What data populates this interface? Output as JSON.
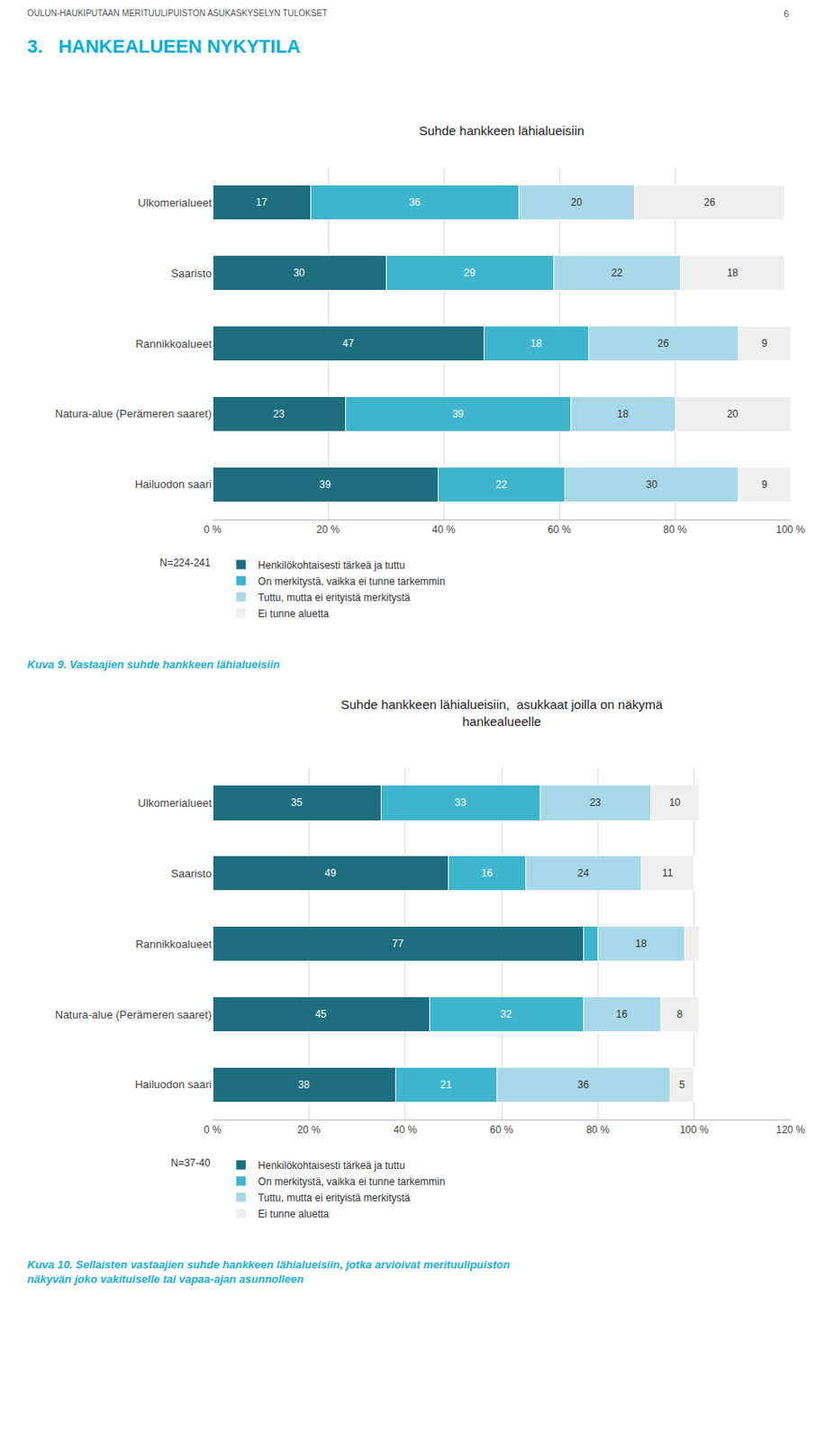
{
  "title": "3.   HANKEALUEEN NYKYTILA",
  "annotations": [
    "OULUN-HAUKIPUTAAN MERITUULIPUISTON ASUKASKYSELYN TULOKSET",
    "6"
  ],
  "chart_data": [
    {
      "type": "bar",
      "orientation": "horizontal",
      "stacked": true,
      "title": "Suhde hankkeen lähialueisiin",
      "categories": [
        "Ulkomerialueet",
        "Saaristo",
        "Rannikkoalueet",
        "Natura-alue (Perämeren saaret)",
        "Hailuodon saari"
      ],
      "series": [
        {
          "name": "Henkilökohtaisesti tärkeä ja tuttu",
          "color": "#1d6e7e",
          "values": [
            17,
            30,
            47,
            23,
            39
          ]
        },
        {
          "name": "On merkitystä, vaikka ei tunne tarkemmin",
          "color": "#3eb5cc",
          "values": [
            36,
            29,
            18,
            39,
            22
          ]
        },
        {
          "name": "Tuttu, mutta ei erityistä merkitystä",
          "color": "#a8d8e8",
          "values": [
            20,
            22,
            26,
            18,
            30
          ]
        },
        {
          "name": "Ei tunne aluetta",
          "color": "#efefef",
          "values": [
            26,
            18,
            9,
            20,
            9
          ]
        }
      ],
      "xlim": [
        0,
        100
      ],
      "xticks": [
        {
          "value": 0,
          "label": "0 %"
        },
        {
          "value": 20,
          "label": "20 %"
        },
        {
          "value": 40,
          "label": "40 %"
        },
        {
          "value": 60,
          "label": "60 %"
        },
        {
          "value": 80,
          "label": "80 %"
        },
        {
          "value": 100,
          "label": "100 %"
        }
      ],
      "grid": true,
      "legend": "bottom",
      "data_labels": true,
      "annotations": [
        "N=224-241",
        "Kuva 9. Vastaajien suhde hankkeen lähialueisiin"
      ]
    },
    {
      "type": "bar",
      "orientation": "horizontal",
      "stacked": true,
      "title": "Suhde hankkeen lähialueisiin,  asukkaat joilla on näkymä\nhankealueelle",
      "categories": [
        "Ulkomerialueet",
        "Saaristo",
        "Rannikkoalueet",
        "Natura-alue (Perämeren saaret)",
        "Hailuodon saari"
      ],
      "series": [
        {
          "name": "Henkilökohtaisesti tärkeä ja tuttu",
          "color": "#1d6e7e",
          "values": [
            35,
            49,
            77,
            45,
            38
          ]
        },
        {
          "name": "On merkitystä, vaikka ei tunne tarkemmin",
          "color": "#3eb5cc",
          "values": [
            33,
            16,
            3,
            32,
            21
          ],
          "value_labels": [
            "33",
            "16",
            null,
            "32",
            "21"
          ]
        },
        {
          "name": "Tuttu, mutta ei erityistä merkitystä",
          "color": "#a8d8e8",
          "values": [
            23,
            24,
            18,
            16,
            36
          ]
        },
        {
          "name": "Ei tunne aluetta",
          "color": "#efefef",
          "values": [
            10,
            11,
            3,
            8,
            5
          ],
          "value_labels": [
            "10",
            "11",
            null,
            "8",
            "5"
          ]
        }
      ],
      "xlim": [
        0,
        120
      ],
      "xticks": [
        {
          "value": 0,
          "label": "0 %"
        },
        {
          "value": 20,
          "label": "20 %"
        },
        {
          "value": 40,
          "label": "40 %"
        },
        {
          "value": 60,
          "label": "60 %"
        },
        {
          "value": 80,
          "label": "80 %"
        },
        {
          "value": 100,
          "label": "100 %"
        },
        {
          "value": 120,
          "label": "120 %"
        }
      ],
      "grid": true,
      "legend": "bottom",
      "data_labels": true,
      "annotations": [
        "N=37-40",
        "Kuva 10. Sellaisten vastaajien suhde hankkeen lähialueisiin, jotka arvioivat merituulipuiston näkyvän joko vakituiselle tai vapaa-ajan asunnolleen"
      ]
    }
  ]
}
